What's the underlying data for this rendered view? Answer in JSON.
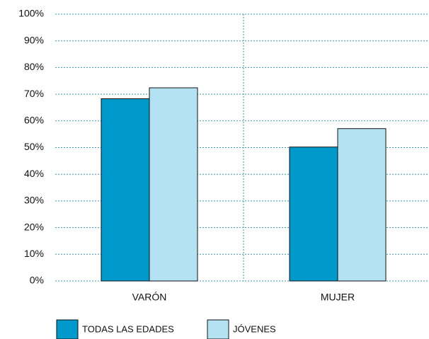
{
  "chart_data": {
    "type": "bar",
    "categories": [
      "VARÓN",
      "MUJER"
    ],
    "series": [
      {
        "name": "TODAS LAS EDADES",
        "color": "#0099cc",
        "values": [
          68.3,
          50.2
        ]
      },
      {
        "name": "JÓVENES",
        "color": "#b3e3f2",
        "values": [
          72.4,
          57.1
        ]
      }
    ],
    "ylim": [
      0,
      100
    ],
    "yticks": [
      {
        "value": 0,
        "label": "0%"
      },
      {
        "value": 10,
        "label": "10%"
      },
      {
        "value": 20,
        "label": "20%"
      },
      {
        "value": 30,
        "label": "30%"
      },
      {
        "value": 40,
        "label": "40%"
      },
      {
        "value": 50,
        "label": "50%"
      },
      {
        "value": 60,
        "label": "60%"
      },
      {
        "value": 70,
        "label": "70%"
      },
      {
        "value": 80,
        "label": "80%"
      },
      {
        "value": 90,
        "label": "90%"
      },
      {
        "value": 100,
        "label": "100%"
      }
    ],
    "grid": true
  }
}
